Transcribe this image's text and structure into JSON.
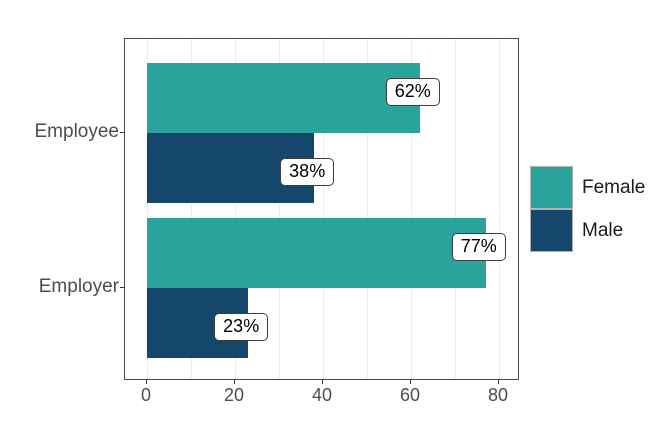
{
  "chart_data": {
    "type": "bar",
    "orientation": "horizontal",
    "title": "",
    "categories": [
      "Employee",
      "Employer"
    ],
    "series": [
      {
        "name": "Female",
        "color": "#2AA49A",
        "values": [
          62,
          77
        ]
      },
      {
        "name": "Male",
        "color": "#15466B",
        "values": [
          38,
          23
        ]
      }
    ],
    "value_labels": [
      {
        "category": "Employee",
        "series": "Female",
        "text": "62%"
      },
      {
        "category": "Employee",
        "series": "Male",
        "text": "38%"
      },
      {
        "category": "Employer",
        "series": "Female",
        "text": "77%"
      },
      {
        "category": "Employer",
        "series": "Male",
        "text": "23%"
      }
    ],
    "xlabel": "",
    "ylabel": "",
    "x_ticks": [
      0,
      20,
      40,
      60,
      80
    ],
    "x_minor_ticks": [
      10,
      30,
      50,
      70
    ],
    "xlim": [
      0,
      84
    ],
    "grid": "vertical",
    "legend_position": "right"
  },
  "axis": {
    "y_labels": [
      "Employee",
      "Employer"
    ],
    "x_tick_labels": [
      "0",
      "20",
      "40",
      "60",
      "80"
    ]
  },
  "legend": {
    "items": [
      {
        "label": "Female",
        "color": "#2AA49A"
      },
      {
        "label": "Male",
        "color": "#15466B"
      }
    ]
  },
  "colors": {
    "female_bar": "#2AA49A",
    "male_bar": "#15466B",
    "gridline": "#EBEBEB",
    "panel_border": "#4A4A4A",
    "axis_text": "#4D4D4D",
    "label_bg": "#FFFFFF",
    "label_border": "#3C3C3C"
  }
}
